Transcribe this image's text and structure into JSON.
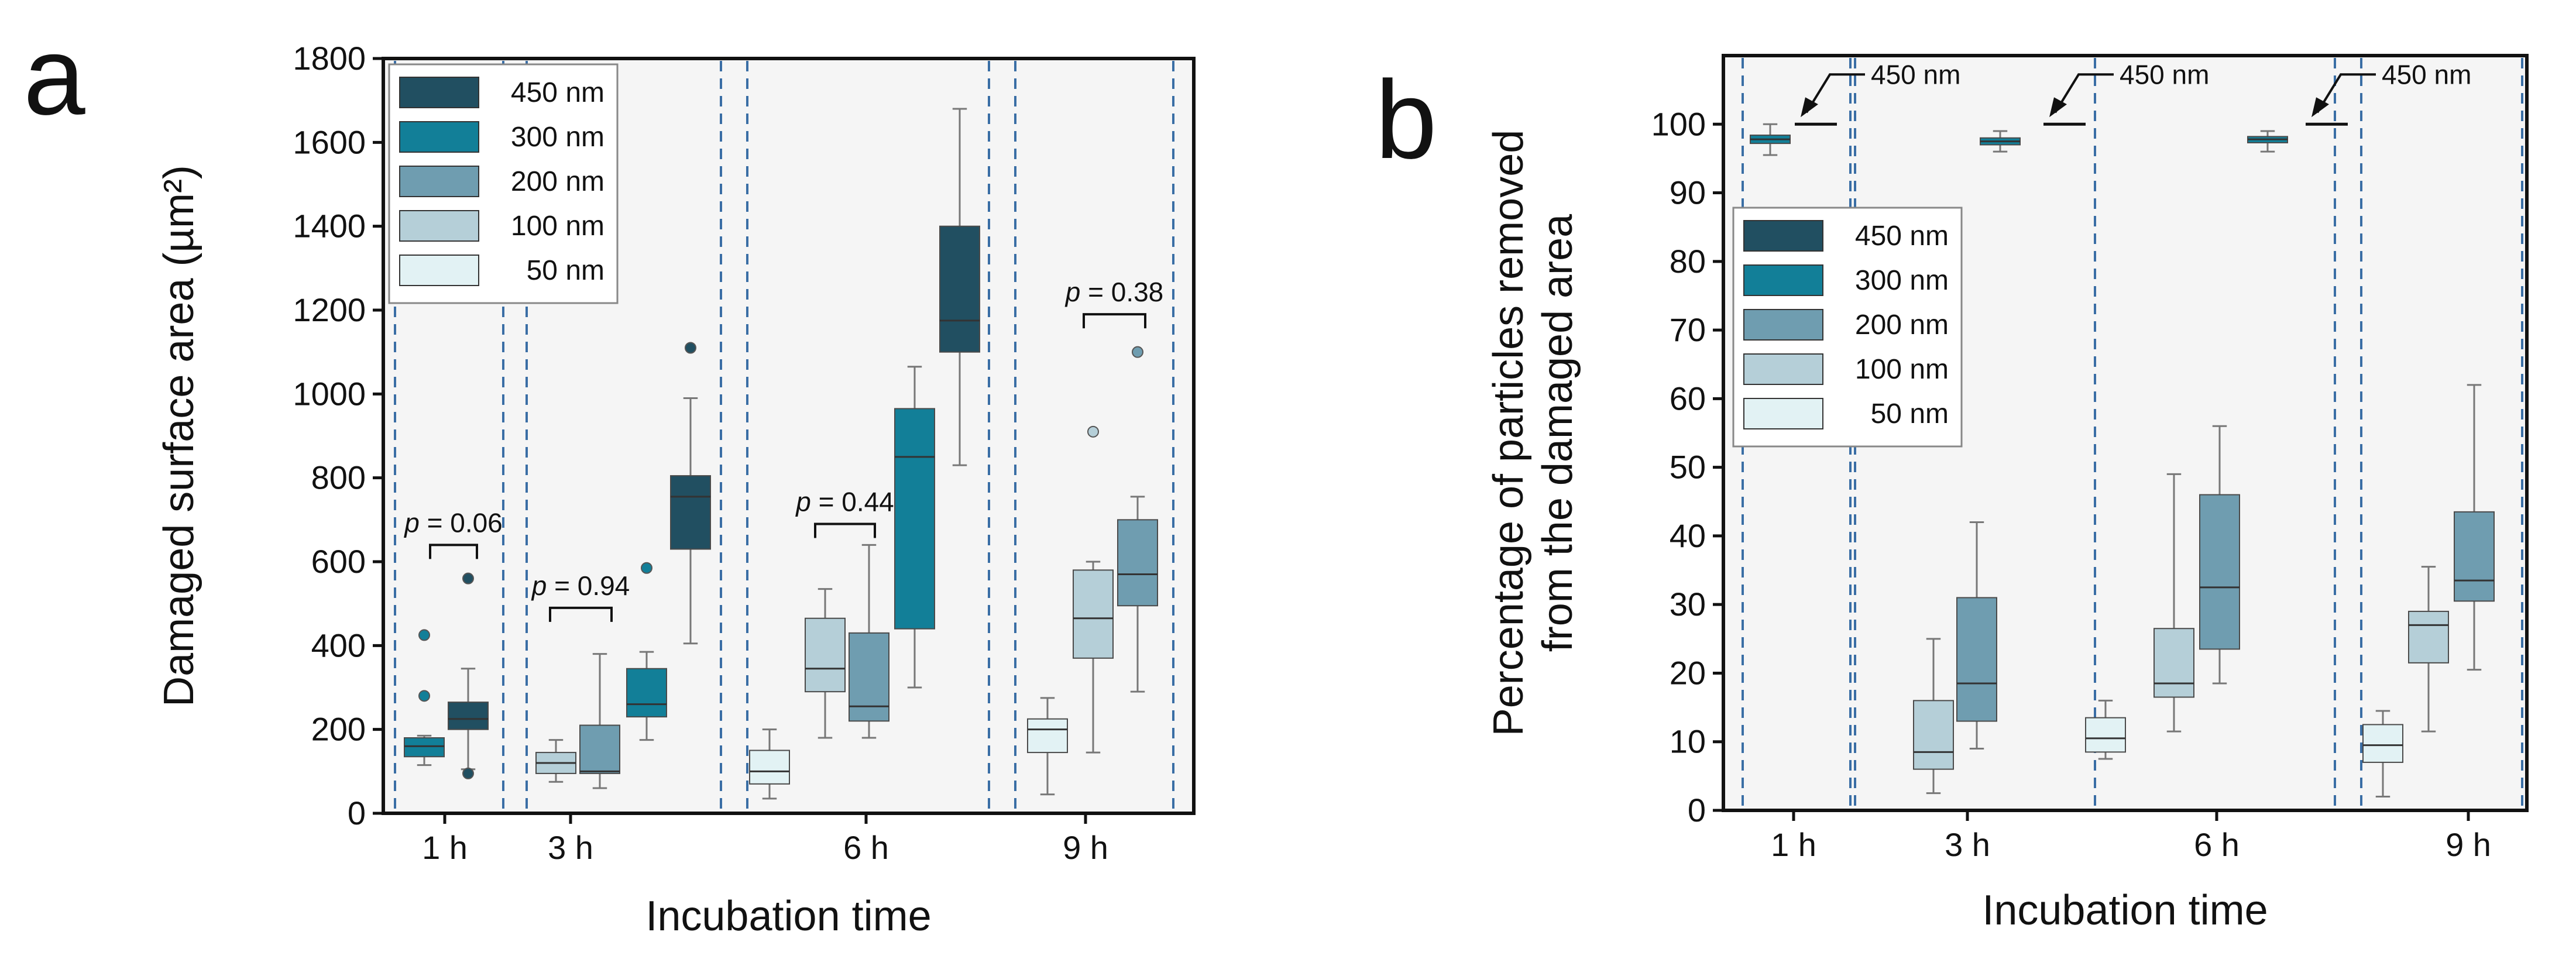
{
  "figure": {
    "panel_a_letter": "a",
    "panel_b_letter": "b",
    "colors": {
      "s50": "#e2f2f4",
      "s100": "#b5cfd8",
      "s200": "#6f9db0",
      "s300": "#127f98",
      "s450": "#214f61",
      "plot_bg": "#f5f5f5",
      "divider": "#3a6ea5",
      "median": "#333333",
      "whisker": "#777777"
    }
  },
  "chart_data": [
    {
      "id": "a",
      "type": "box",
      "xlabel": "Incubation time",
      "ylabel": "Damaged surface area (µm²)",
      "ylim": [
        0,
        1800
      ],
      "yticks": [
        0,
        200,
        400,
        600,
        800,
        1000,
        1200,
        1400,
        1600,
        1800
      ],
      "categories": [
        "1 h",
        "3 h",
        "6 h",
        "9 h"
      ],
      "legend": {
        "placement": "top-left",
        "entries": [
          {
            "key": "s450",
            "label": "450 nm"
          },
          {
            "key": "s300",
            "label": "300 nm"
          },
          {
            "key": "s200",
            "label": "200 nm"
          },
          {
            "key": "s100",
            "label": "100 nm"
          },
          {
            "key": "s50",
            "label": "50 nm"
          }
        ]
      },
      "boxes": [
        {
          "category": "1 h",
          "series": "300 nm",
          "color_key": "s300",
          "min": 115,
          "q1": 135,
          "median": 160,
          "q3": 180,
          "max": 185,
          "outliers": [
            280,
            425
          ]
        },
        {
          "category": "1 h",
          "series": "450 nm",
          "color_key": "s450",
          "min": 105,
          "q1": 200,
          "median": 225,
          "q3": 265,
          "max": 345,
          "outliers": [
            95,
            560
          ]
        },
        {
          "category": "3 h",
          "series": "100 nm",
          "color_key": "s100",
          "min": 75,
          "q1": 95,
          "median": 120,
          "q3": 145,
          "max": 175,
          "outliers": []
        },
        {
          "category": "3 h",
          "series": "200 nm",
          "color_key": "s200",
          "min": 60,
          "q1": 95,
          "median": 100,
          "q3": 210,
          "max": 380,
          "outliers": []
        },
        {
          "category": "3 h",
          "series": "300 nm",
          "color_key": "s300",
          "min": 175,
          "q1": 230,
          "median": 260,
          "q3": 345,
          "max": 385,
          "outliers": [
            585
          ]
        },
        {
          "category": "3 h",
          "series": "450 nm",
          "color_key": "s450",
          "min": 405,
          "q1": 630,
          "median": 755,
          "q3": 805,
          "max": 990,
          "outliers": [
            1110
          ]
        },
        {
          "category": "6 h",
          "series": "50 nm",
          "color_key": "s50",
          "min": 35,
          "q1": 70,
          "median": 100,
          "q3": 150,
          "max": 200,
          "outliers": []
        },
        {
          "category": "6 h",
          "series": "100 nm",
          "color_key": "s100",
          "min": 180,
          "q1": 290,
          "median": 345,
          "q3": 465,
          "max": 535,
          "outliers": []
        },
        {
          "category": "6 h",
          "series": "200 nm",
          "color_key": "s200",
          "min": 180,
          "q1": 220,
          "median": 255,
          "q3": 430,
          "max": 640,
          "outliers": []
        },
        {
          "category": "6 h",
          "series": "300 nm",
          "color_key": "s300",
          "min": 300,
          "q1": 440,
          "median": 850,
          "q3": 965,
          "max": 1065,
          "outliers": []
        },
        {
          "category": "6 h",
          "series": "450 nm",
          "color_key": "s450",
          "min": 830,
          "q1": 1100,
          "median": 1175,
          "q3": 1400,
          "max": 1680,
          "outliers": []
        },
        {
          "category": "9 h",
          "series": "50 nm",
          "color_key": "s50",
          "min": 45,
          "q1": 145,
          "median": 200,
          "q3": 225,
          "max": 275,
          "outliers": []
        },
        {
          "category": "9 h",
          "series": "100 nm",
          "color_key": "s100",
          "min": 145,
          "q1": 370,
          "median": 465,
          "q3": 580,
          "max": 600,
          "outliers": [
            910
          ]
        },
        {
          "category": "9 h",
          "series": "200 nm",
          "color_key": "s200",
          "min": 290,
          "q1": 495,
          "median": 570,
          "q3": 700,
          "max": 755,
          "outliers": [
            1100
          ]
        }
      ],
      "pvalues": [
        {
          "category": "1 h",
          "p": "p",
          "text": " = 0.06",
          "y": 640
        },
        {
          "category": "3 h",
          "p": "p",
          "text": " = 0.94",
          "y": 490
        },
        {
          "category": "6 h",
          "p": "p",
          "text": " = 0.44",
          "y": 690
        },
        {
          "category": "9 h",
          "p": "p",
          "text": " = 0.38",
          "y": 1190
        }
      ]
    },
    {
      "id": "b",
      "type": "box",
      "xlabel": "Incubation time",
      "ylabel_line1": "Percentage of particles removed",
      "ylabel_line2": "from the damaged area",
      "ylim": [
        0,
        110
      ],
      "yticks": [
        0,
        10,
        20,
        30,
        40,
        50,
        60,
        70,
        80,
        90,
        100
      ],
      "categories": [
        "1 h",
        "3 h",
        "6 h",
        "9 h"
      ],
      "legend": {
        "placement": "upper-left",
        "entries": [
          {
            "key": "s450",
            "label": "450 nm"
          },
          {
            "key": "s300",
            "label": "300 nm"
          },
          {
            "key": "s200",
            "label": "200 nm"
          },
          {
            "key": "s100",
            "label": "100 nm"
          },
          {
            "key": "s50",
            "label": "50 nm"
          }
        ]
      },
      "boxes": [
        {
          "category": "1 h",
          "series": "300 nm",
          "color_key": "s300",
          "min": 95.5,
          "q1": 97.2,
          "median": 97.8,
          "q3": 98.4,
          "max": 100,
          "outliers": []
        },
        {
          "category": "3 h",
          "series": "100 nm",
          "color_key": "s100",
          "min": 2.5,
          "q1": 6,
          "median": 8.5,
          "q3": 16,
          "max": 25,
          "outliers": []
        },
        {
          "category": "3 h",
          "series": "200 nm",
          "color_key": "s200",
          "min": 9,
          "q1": 13,
          "median": 18.5,
          "q3": 31,
          "max": 42,
          "outliers": []
        },
        {
          "category": "3 h",
          "series": "300 nm",
          "color_key": "s300",
          "min": 96,
          "q1": 97,
          "median": 97.5,
          "q3": 98,
          "max": 99,
          "outliers": []
        },
        {
          "category": "6 h",
          "series": "50 nm",
          "color_key": "s50",
          "min": 7.5,
          "q1": 8.5,
          "median": 10.5,
          "q3": 13.5,
          "max": 16,
          "outliers": []
        },
        {
          "category": "6 h",
          "series": "100 nm",
          "color_key": "s100",
          "min": 11.5,
          "q1": 16.5,
          "median": 18.5,
          "q3": 26.5,
          "max": 49,
          "outliers": []
        },
        {
          "category": "6 h",
          "series": "200 nm",
          "color_key": "s200",
          "min": 18.5,
          "q1": 23.5,
          "median": 32.5,
          "q3": 46,
          "max": 56,
          "outliers": []
        },
        {
          "category": "6 h",
          "series": "300 nm",
          "color_key": "s300",
          "min": 96,
          "q1": 97.3,
          "median": 97.8,
          "q3": 98.2,
          "max": 99,
          "outliers": []
        },
        {
          "category": "9 h",
          "series": "50 nm",
          "color_key": "s50",
          "min": 2,
          "q1": 7,
          "median": 9.5,
          "q3": 12.5,
          "max": 14.5,
          "outliers": []
        },
        {
          "category": "9 h",
          "series": "100 nm",
          "color_key": "s100",
          "min": 11.5,
          "q1": 21.5,
          "median": 27,
          "q3": 29,
          "max": 35.5,
          "outliers": []
        },
        {
          "category": "9 h",
          "series": "200 nm",
          "color_key": "s200",
          "min": 20.5,
          "q1": 30.5,
          "median": 33.5,
          "q3": 43.5,
          "max": 62,
          "outliers": []
        }
      ],
      "annotations": [
        {
          "category": "1 h",
          "label": "450 nm",
          "value": 100
        },
        {
          "category": "3 h",
          "label": "450 nm",
          "value": 100
        },
        {
          "category": "6 h",
          "label": "450 nm",
          "value": 100
        }
      ]
    }
  ]
}
